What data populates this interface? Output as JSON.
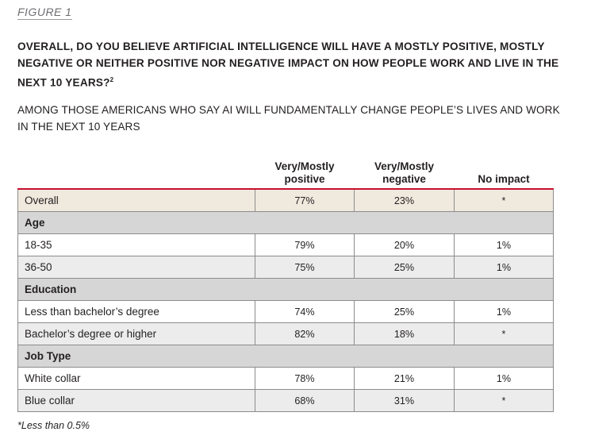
{
  "figure_label": "FIGURE 1",
  "question": "OVERALL, DO YOU BELIEVE ARTIFICIAL INTELLIGENCE WILL HAVE A MOSTLY POSITIVE, MOSTLY NEGATIVE OR NEITHER POSITIVE NOR NEGATIVE IMPACT ON HOW PEOPLE WORK AND LIVE IN THE NEXT 10 YEARS?",
  "question_footnote_mark": "2",
  "subtitle": "AMONG THOSE AMERICANS WHO SAY AI WILL FUNDAMENTALLY CHANGE PEOPLE’S LIVES AND WORK IN THE NEXT 10 YEARS",
  "columns": [
    "",
    "Very/Mostly positive",
    "Very/Mostly negative",
    "No impact"
  ],
  "colors": {
    "header_rule": "#c8102e",
    "overall_row": "#efe9de",
    "group_row": "#d6d6d6",
    "alt_row": "#ececec",
    "border": "#8c8c8c"
  },
  "footnote": "*Less than 0.5%",
  "chart_data": {
    "type": "table",
    "title": "OVERALL, DO YOU BELIEVE ARTIFICIAL INTELLIGENCE WILL HAVE A MOSTLY POSITIVE, MOSTLY NEGATIVE OR NEITHER POSITIVE NOR NEGATIVE IMPACT ON HOW PEOPLE WORK AND LIVE IN THE NEXT 10 YEARS?",
    "subtitle": "AMONG THOSE AMERICANS WHO SAY AI WILL FUNDAMENTALLY CHANGE PEOPLE’S LIVES AND WORK IN THE NEXT 10 YEARS",
    "columns": [
      "Very/Mostly positive",
      "Very/Mostly negative",
      "No impact"
    ],
    "rows": [
      {
        "kind": "overall",
        "label": "Overall",
        "values": [
          "77%",
          "23%",
          "*"
        ]
      },
      {
        "kind": "group",
        "label": "Age"
      },
      {
        "kind": "data",
        "label": "18-35",
        "values": [
          "79%",
          "20%",
          "1%"
        ]
      },
      {
        "kind": "data",
        "label": "36-50",
        "values": [
          "75%",
          "25%",
          "1%"
        ]
      },
      {
        "kind": "group",
        "label": "Education"
      },
      {
        "kind": "data",
        "label": "Less than bachelor’s degree",
        "values": [
          "74%",
          "25%",
          "1%"
        ]
      },
      {
        "kind": "data",
        "label": "Bachelor’s degree or higher",
        "values": [
          "82%",
          "18%",
          "*"
        ]
      },
      {
        "kind": "group",
        "label": "Job Type"
      },
      {
        "kind": "data",
        "label": "White collar",
        "values": [
          "78%",
          "21%",
          "1%"
        ]
      },
      {
        "kind": "data",
        "label": "Blue collar",
        "values": [
          "68%",
          "31%",
          "*"
        ]
      }
    ]
  }
}
